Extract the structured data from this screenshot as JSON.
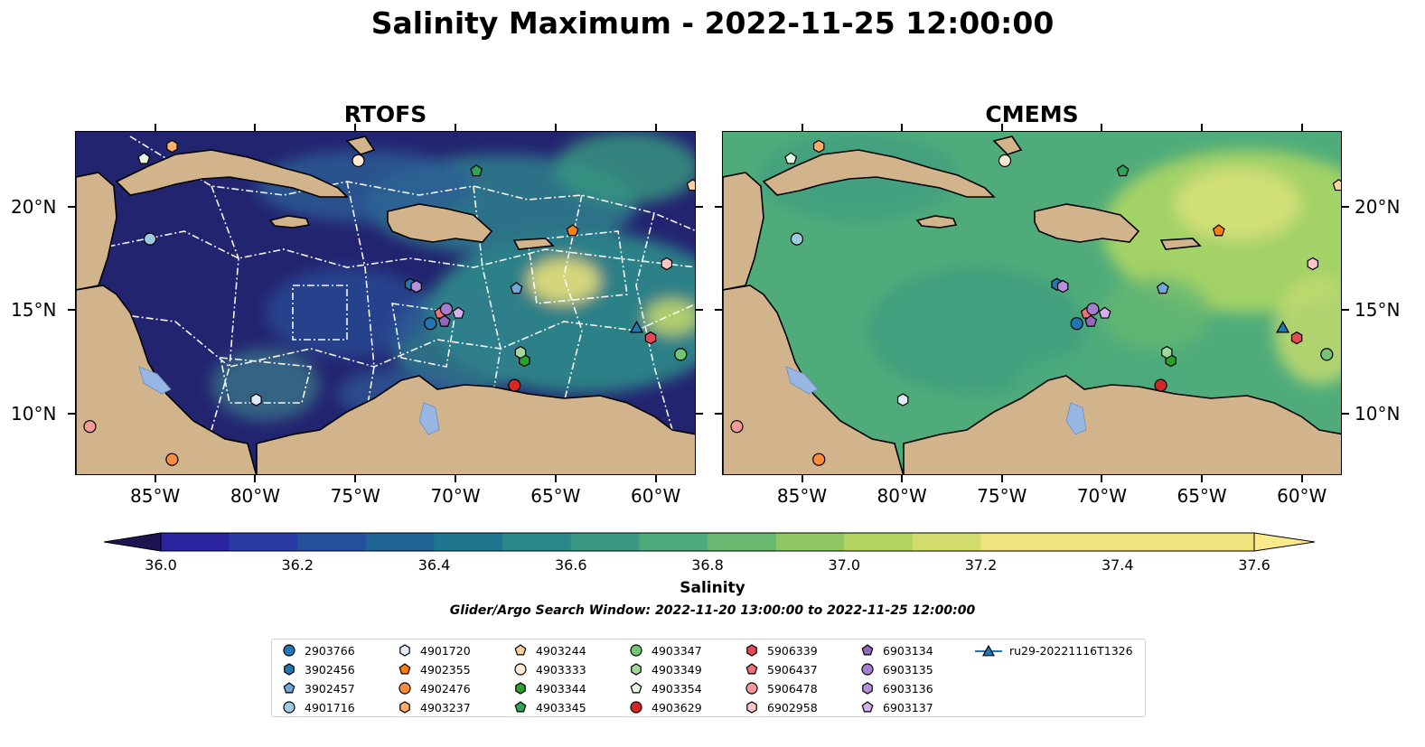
{
  "title": "Salinity Maximum - 2022-11-25 12:00:00",
  "panels": [
    {
      "title": "RTOFS"
    },
    {
      "title": "CMEMS"
    }
  ],
  "lon_ticks": [
    "85°W",
    "80°W",
    "75°W",
    "70°W",
    "65°W",
    "60°W"
  ],
  "lat_ticks": [
    "20°N",
    "15°N",
    "10°N"
  ],
  "colorbar": {
    "label": "Salinity",
    "ticks": [
      "36.0",
      "36.2",
      "36.4",
      "36.6",
      "36.8",
      "37.0",
      "37.2",
      "37.4",
      "37.6"
    ],
    "min": 36.0,
    "max": 37.6,
    "step": 0.1,
    "colormap": "haline"
  },
  "search_window": "Glider/Argo Search Window: 2022-11-20 13:00:00 to 2022-11-25 12:00:00",
  "map_extent": {
    "lon_min": -89,
    "lon_max": -58,
    "lat_min": 7,
    "lat_max": 23.7
  },
  "colors": {
    "land": "#d2b48c",
    "lake": "#97b6e1",
    "border": "#000000"
  },
  "legend": [
    {
      "id": "2903766",
      "marker": "circle",
      "color": "#1f77b4"
    },
    {
      "id": "3902456",
      "marker": "hexagon",
      "color": "#1f77b4"
    },
    {
      "id": "3902457",
      "marker": "pentagon",
      "color": "#6fa8dc"
    },
    {
      "id": "4901716",
      "marker": "circle",
      "color": "#9ecae1"
    },
    {
      "id": "4901720",
      "marker": "hexagon",
      "color": "#deebf7"
    },
    {
      "id": "4902355",
      "marker": "pentagon",
      "color": "#ff7f0e"
    },
    {
      "id": "4902476",
      "marker": "circle",
      "color": "#fd8d3c"
    },
    {
      "id": "4903237",
      "marker": "hexagon",
      "color": "#fdae6b"
    },
    {
      "id": "4903244",
      "marker": "pentagon",
      "color": "#fdd0a2"
    },
    {
      "id": "4903333",
      "marker": "circle",
      "color": "#feead4"
    },
    {
      "id": "4903344",
      "marker": "hexagon",
      "color": "#2ca02c"
    },
    {
      "id": "4903345",
      "marker": "pentagon",
      "color": "#31a354"
    },
    {
      "id": "4903347",
      "marker": "circle",
      "color": "#74c476"
    },
    {
      "id": "4903349",
      "marker": "hexagon",
      "color": "#a1d99b"
    },
    {
      "id": "4903354",
      "marker": "pentagon",
      "color": "#e5f5e0"
    },
    {
      "id": "4903629",
      "marker": "circle",
      "color": "#d62728"
    },
    {
      "id": "5906339",
      "marker": "hexagon",
      "color": "#e34a55"
    },
    {
      "id": "5906437",
      "marker": "pentagon",
      "color": "#f07078"
    },
    {
      "id": "5906478",
      "marker": "circle",
      "color": "#f49a98"
    },
    {
      "id": "6902958",
      "marker": "hexagon",
      "color": "#f9c6c4"
    },
    {
      "id": "6903134",
      "marker": "pentagon",
      "color": "#9467bd"
    },
    {
      "id": "6903135",
      "marker": "circle",
      "color": "#a37fd0"
    },
    {
      "id": "6903136",
      "marker": "hexagon",
      "color": "#b792dc"
    },
    {
      "id": "6903137",
      "marker": "pentagon",
      "color": "#d4b0ec"
    },
    {
      "id": "ru29-20221116T1326",
      "marker": "glider",
      "color": "#1f77b4"
    }
  ],
  "floats": [
    {
      "id": "2903766",
      "lat": 14.4,
      "lon": -71.3
    },
    {
      "id": "3902456",
      "lat": 16.3,
      "lon": -72.3
    },
    {
      "id": "3902457",
      "lat": 16.1,
      "lon": -67.0
    },
    {
      "id": "4901716",
      "lat": 18.5,
      "lon": -85.3
    },
    {
      "id": "4901720",
      "lat": 10.7,
      "lon": -80.0
    },
    {
      "id": "4902355",
      "lat": 18.9,
      "lon": -64.2
    },
    {
      "id": "4902476",
      "lat": 7.8,
      "lon": -84.2
    },
    {
      "id": "4903237",
      "lat": 23.0,
      "lon": -84.2
    },
    {
      "id": "4903244",
      "lat": 21.1,
      "lon": -58.2
    },
    {
      "id": "4903333",
      "lat": 22.3,
      "lon": -74.9
    },
    {
      "id": "4903344",
      "lat": 12.6,
      "lon": -66.6
    },
    {
      "id": "4903345",
      "lat": 21.8,
      "lon": -69.0
    },
    {
      "id": "4903347",
      "lat": 12.9,
      "lon": -58.8
    },
    {
      "id": "4903349",
      "lat": 13.0,
      "lon": -66.8
    },
    {
      "id": "4903354",
      "lat": 22.4,
      "lon": -85.6
    },
    {
      "id": "4903629",
      "lat": 11.4,
      "lon": -67.1
    },
    {
      "id": "5906339",
      "lat": 13.7,
      "lon": -60.3
    },
    {
      "id": "5906437",
      "lat": 14.9,
      "lon": -70.8
    },
    {
      "id": "5906478",
      "lat": 9.4,
      "lon": -88.3
    },
    {
      "id": "6902958",
      "lat": 17.3,
      "lon": -59.5
    },
    {
      "id": "6903134",
      "lat": 14.5,
      "lon": -70.6
    },
    {
      "id": "6903135",
      "lat": 15.1,
      "lon": -70.5
    },
    {
      "id": "6903136",
      "lat": 16.2,
      "lon": -72.0
    },
    {
      "id": "6903137",
      "lat": 14.9,
      "lon": -69.9
    },
    {
      "id": "ru29-20221116T1326",
      "lat": 14.2,
      "lon": -61.0
    }
  ]
}
